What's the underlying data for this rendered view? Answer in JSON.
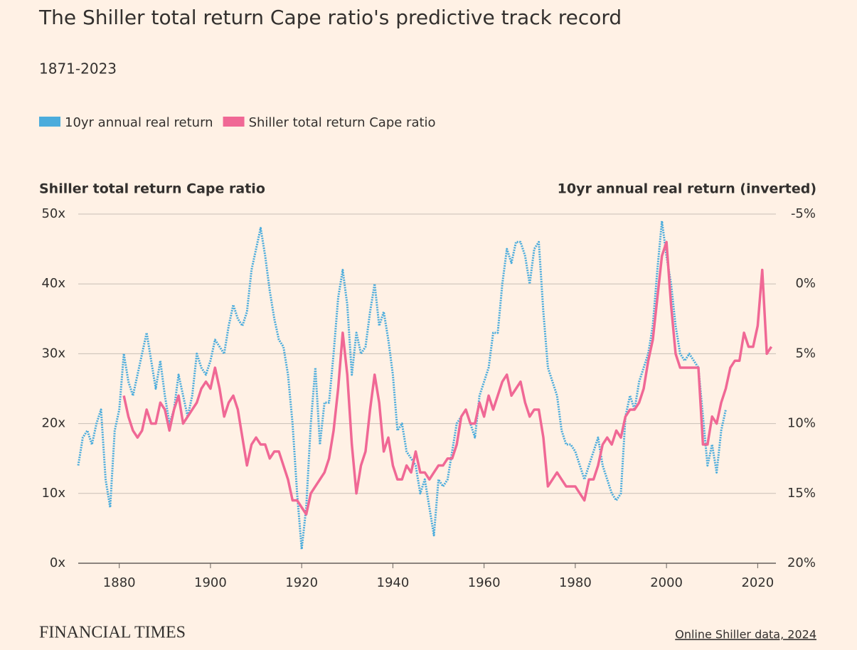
{
  "chart_data": {
    "type": "line",
    "title": "The Shiller total return Cape ratio's predictive track record",
    "subtitle": "1871-2023",
    "y_axis_label": "Shiller total return Cape ratio",
    "y2_axis_label": "10yr annual real return (inverted)",
    "source": "Online Shiller data, 2024",
    "brand": "FINANCIAL TIMES",
    "x": [
      1871,
      1872,
      1873,
      1874,
      1875,
      1876,
      1877,
      1878,
      1879,
      1880,
      1881,
      1882,
      1883,
      1884,
      1885,
      1886,
      1887,
      1888,
      1889,
      1890,
      1891,
      1892,
      1893,
      1894,
      1895,
      1896,
      1897,
      1898,
      1899,
      1900,
      1901,
      1902,
      1903,
      1904,
      1905,
      1906,
      1907,
      1908,
      1909,
      1910,
      1911,
      1912,
      1913,
      1914,
      1915,
      1916,
      1917,
      1918,
      1919,
      1920,
      1921,
      1922,
      1923,
      1924,
      1925,
      1926,
      1927,
      1928,
      1929,
      1930,
      1931,
      1932,
      1933,
      1934,
      1935,
      1936,
      1937,
      1938,
      1939,
      1940,
      1941,
      1942,
      1943,
      1944,
      1945,
      1946,
      1947,
      1948,
      1949,
      1950,
      1951,
      1952,
      1953,
      1954,
      1955,
      1956,
      1957,
      1958,
      1959,
      1960,
      1961,
      1962,
      1963,
      1964,
      1965,
      1966,
      1967,
      1968,
      1969,
      1970,
      1971,
      1972,
      1973,
      1974,
      1975,
      1976,
      1977,
      1978,
      1979,
      1980,
      1981,
      1982,
      1983,
      1984,
      1985,
      1986,
      1987,
      1988,
      1989,
      1990,
      1991,
      1992,
      1993,
      1994,
      1995,
      1996,
      1997,
      1998,
      1999,
      2000,
      2001,
      2002,
      2003,
      2004,
      2005,
      2006,
      2007,
      2008,
      2009,
      2010,
      2011,
      2012,
      2013,
      2014,
      2015,
      2016,
      2017,
      2018,
      2019,
      2020,
      2021,
      2022,
      2023
    ],
    "series": [
      {
        "name": "10yr annual real return",
        "color": "#4bacdc",
        "axis": "y2",
        "dashed": true,
        "values": [
          13,
          11,
          10.5,
          11.5,
          10,
          9,
          14,
          16,
          10.5,
          9,
          5,
          7,
          8,
          6.5,
          5,
          3.5,
          5.5,
          7.5,
          5.5,
          8,
          10,
          9,
          6.5,
          8,
          9.5,
          8,
          5,
          6,
          6.5,
          5.5,
          4,
          4.5,
          5,
          3,
          1.5,
          2.5,
          3,
          2,
          -1,
          -2.5,
          -4,
          -2,
          0.5,
          2.5,
          4,
          4.5,
          6.5,
          10,
          15,
          19,
          16,
          10,
          6,
          11.5,
          8.5,
          8.5,
          5,
          1,
          -1,
          1.5,
          6.5,
          3.5,
          5,
          4.5,
          2,
          0,
          3,
          2,
          4,
          6.5,
          10.5,
          10,
          12,
          12.5,
          13,
          15,
          14,
          16,
          18,
          14,
          14.5,
          14,
          12,
          10,
          9.5,
          9,
          10,
          11,
          8,
          7,
          6,
          3.5,
          3.5,
          0,
          -2.5,
          -1.5,
          -3,
          -3,
          -2,
          0,
          -2.5,
          -3,
          2,
          6,
          7,
          8,
          10.5,
          11.5,
          11.5,
          12,
          13,
          14,
          13,
          12,
          11,
          13,
          14,
          15,
          15.5,
          15,
          9.5,
          8,
          9,
          7,
          6,
          5,
          3,
          -1,
          -4.5,
          -2,
          0,
          3,
          5,
          5.5,
          5,
          5.5,
          6,
          9.5,
          13,
          11.5,
          13.5,
          10.5,
          9,
          null,
          null,
          null,
          null,
          null,
          null,
          null,
          null,
          null,
          null
        ]
      },
      {
        "name": "Shiller total return Cape ratio",
        "color": "#f06895",
        "axis": "y",
        "values": [
          null,
          null,
          null,
          null,
          null,
          null,
          null,
          null,
          null,
          null,
          24,
          21,
          19,
          18,
          19,
          22,
          20,
          20,
          23,
          22,
          19,
          22,
          24,
          20,
          21,
          22,
          23,
          25,
          26,
          25,
          28,
          25,
          21,
          23,
          24,
          22,
          18,
          14,
          17,
          18,
          17,
          17,
          15,
          16,
          16,
          14,
          12,
          9,
          9,
          8,
          7,
          10,
          11,
          12,
          13,
          15,
          19,
          25,
          33,
          27,
          17,
          10,
          14,
          16,
          22,
          27,
          23,
          16,
          18,
          14,
          12,
          12,
          14,
          13,
          16,
          13,
          13,
          12,
          13,
          14,
          14,
          15,
          15,
          17,
          21,
          22,
          20,
          20,
          23,
          21,
          24,
          22,
          24,
          26,
          27,
          24,
          25,
          26,
          23,
          21,
          22,
          22,
          18,
          11,
          12,
          13,
          12,
          11,
          11,
          11,
          10,
          9,
          12,
          12,
          14,
          17,
          18,
          17,
          19,
          18,
          21,
          22,
          22,
          23,
          25,
          29,
          32,
          38,
          44,
          46,
          37,
          30,
          28,
          28,
          28,
          28,
          28,
          17,
          17,
          21,
          20,
          23,
          25,
          28,
          29,
          29,
          33,
          31,
          31,
          34,
          42,
          30,
          31
        ]
      }
    ],
    "xlim": [
      1871,
      2024
    ],
    "xticks": [
      1880,
      1900,
      1920,
      1940,
      1960,
      1980,
      2000,
      2020
    ],
    "ylim": [
      0,
      50
    ],
    "yticks": [
      {
        "value": 0,
        "label": "0x"
      },
      {
        "value": 10,
        "label": "10x"
      },
      {
        "value": 20,
        "label": "20x"
      },
      {
        "value": 30,
        "label": "30x"
      },
      {
        "value": 40,
        "label": "40x"
      },
      {
        "value": 50,
        "label": "50x"
      }
    ],
    "y2lim": [
      20,
      -5
    ],
    "y2ticks": [
      {
        "value": 20,
        "label": "20%"
      },
      {
        "value": 15,
        "label": "15%"
      },
      {
        "value": 10,
        "label": "10%"
      },
      {
        "value": 5,
        "label": "5%"
      },
      {
        "value": 0,
        "label": "0%"
      },
      {
        "value": -5,
        "label": "-5%"
      }
    ],
    "grid": true
  }
}
